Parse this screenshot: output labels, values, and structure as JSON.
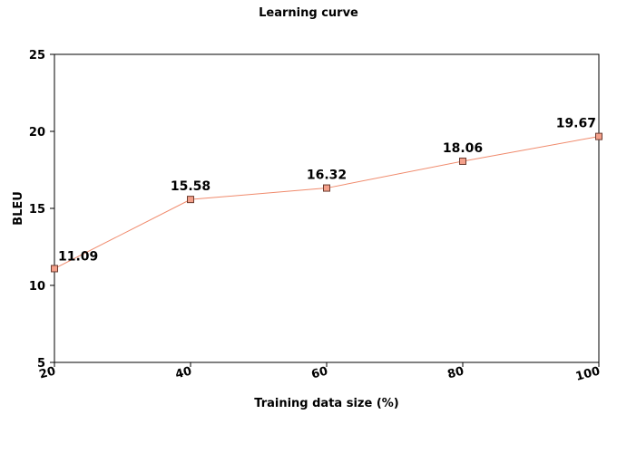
{
  "chart_data": {
    "type": "line",
    "title": "Learning curve",
    "xlabel": "Training data size (%)",
    "ylabel": "BLEU",
    "x": [
      20,
      40,
      60,
      80,
      100
    ],
    "xlim": [
      20,
      100
    ],
    "xticks": [
      20,
      40,
      60,
      80,
      100
    ],
    "ylim": [
      5,
      25
    ],
    "yticks": [
      5,
      10,
      15,
      20,
      25
    ],
    "grid": false,
    "series": [
      {
        "values": [
          11.09,
          15.58,
          16.32,
          18.06,
          19.67
        ],
        "labels": [
          "11.09",
          "15.58",
          "16.32",
          "18.06",
          "19.67"
        ],
        "color": "#f08a6c",
        "marker_fill": "#f4a08a"
      }
    ]
  }
}
